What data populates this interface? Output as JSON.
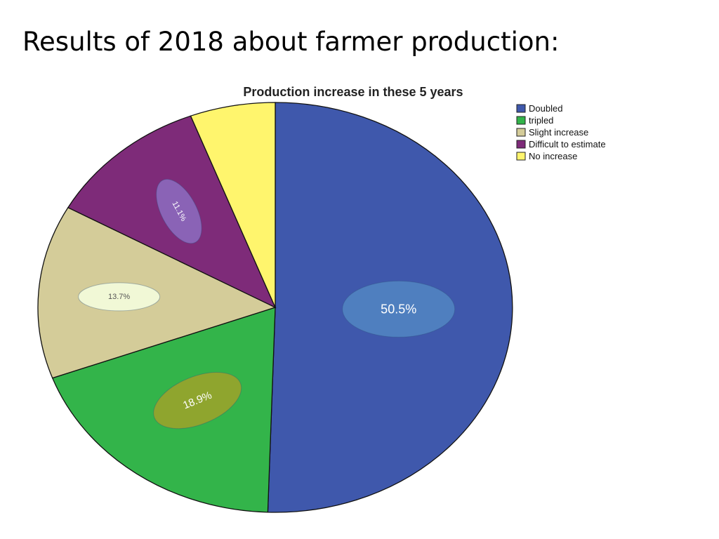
{
  "slide": {
    "title": "Results of 2018 about farmer production:"
  },
  "chart_data": {
    "type": "pie",
    "title": "Production increase in these 5 years",
    "legend_position": "right",
    "slices": [
      {
        "label": "Doubled",
        "value": 50.5,
        "color": "#3F58AC",
        "data_label": "50.5%",
        "badge_color": "#4F7FBF",
        "text_color": "#FFFFFF"
      },
      {
        "label": "tripled",
        "value": 18.9,
        "color": "#33B44A",
        "data_label": "18.9%",
        "badge_color": "#8FA52E",
        "text_color": "#FFFFFF"
      },
      {
        "label": "Slight increase",
        "value": 13.7,
        "color": "#D4CC99",
        "data_label": "13.7%",
        "badge_color": "#F1F8D6",
        "text_color": "#555555"
      },
      {
        "label": "Difficult to estimate",
        "value": 11.1,
        "color": "#7E2B79",
        "data_label": "11.1%",
        "badge_color": "#8A63B6",
        "text_color": "#FFFFFF"
      },
      {
        "label": "No increase",
        "value": 5.8,
        "color": "#FFF56D",
        "data_label": "",
        "badge_color": "",
        "text_color": ""
      }
    ]
  }
}
